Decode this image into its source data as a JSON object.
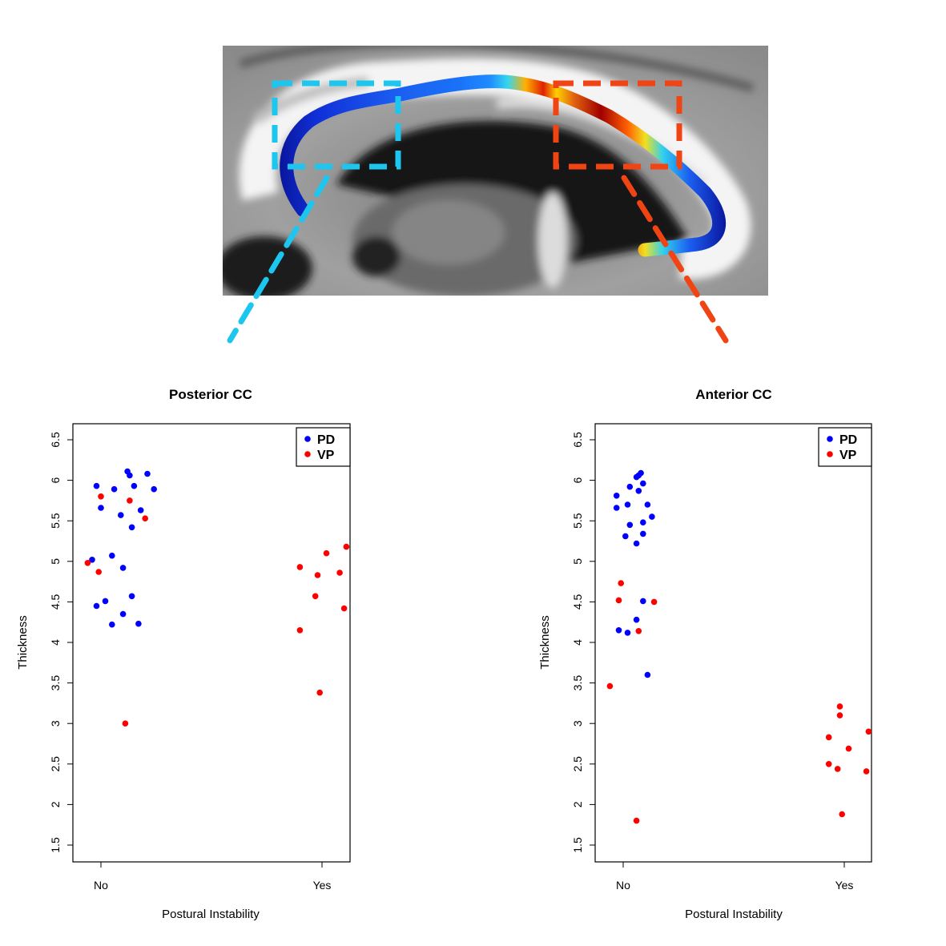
{
  "figure": {
    "colors": {
      "pd": "#0000ff",
      "vp": "#ff0000",
      "posterior_box": "#1cc6ee",
      "anterior_box": "#f04414"
    }
  },
  "chart_data": [
    {
      "type": "scatter",
      "title": "Posterior CC",
      "xlabel": "Postural Instability",
      "ylabel": "Thickness",
      "categories": [
        "No",
        "Yes"
      ],
      "ylim": [
        1.25,
        6.75
      ],
      "yticks": [
        "1.5",
        "2",
        "2.5",
        "3",
        "3.5",
        "4",
        "4.5",
        "5",
        "5.5",
        "6",
        "6.5"
      ],
      "legend": {
        "position": "top-right",
        "entries": [
          "PD",
          "VP"
        ]
      },
      "series": [
        {
          "name": "PD",
          "color": "#0000ff",
          "points": [
            [
              -0.02,
              5.93
            ],
            [
              0.06,
              5.89
            ],
            [
              0.12,
              6.11
            ],
            [
              0.13,
              6.06
            ],
            [
              0.15,
              5.93
            ],
            [
              0.21,
              6.08
            ],
            [
              0.24,
              5.89
            ],
            [
              0.0,
              5.66
            ],
            [
              0.09,
              5.57
            ],
            [
              0.18,
              5.63
            ],
            [
              0.14,
              5.42
            ],
            [
              -0.04,
              5.02
            ],
            [
              0.05,
              5.07
            ],
            [
              0.1,
              4.92
            ],
            [
              -0.02,
              4.45
            ],
            [
              0.02,
              4.51
            ],
            [
              0.14,
              4.57
            ],
            [
              0.05,
              4.22
            ],
            [
              0.1,
              4.35
            ],
            [
              0.17,
              4.23
            ]
          ]
        },
        {
          "name": "VP",
          "color": "#ff0000",
          "points": [
            [
              -0.06,
              4.98
            ],
            [
              -0.01,
              4.87
            ],
            [
              0.0,
              5.8
            ],
            [
              0.13,
              5.75
            ],
            [
              0.2,
              5.53
            ],
            [
              0.11,
              3.0
            ],
            [
              0.9,
              4.93
            ],
            [
              0.98,
              4.83
            ],
            [
              1.02,
              5.1
            ],
            [
              1.08,
              4.86
            ],
            [
              1.11,
              5.18
            ],
            [
              0.97,
              4.57
            ],
            [
              1.1,
              4.42
            ],
            [
              0.9,
              4.15
            ],
            [
              0.99,
              3.38
            ]
          ]
        }
      ]
    },
    {
      "type": "scatter",
      "title": "Anterior CC",
      "xlabel": "Postural Instability",
      "ylabel": "Thickness",
      "categories": [
        "No",
        "Yes"
      ],
      "ylim": [
        1.25,
        6.75
      ],
      "yticks": [
        "1.5",
        "2",
        "2.5",
        "3",
        "3.5",
        "4",
        "4.5",
        "5",
        "5.5",
        "6",
        "6.5"
      ],
      "legend": {
        "position": "top-right",
        "entries": [
          "PD",
          "VP"
        ]
      },
      "series": [
        {
          "name": "PD",
          "color": "#0000ff",
          "points": [
            [
              0.07,
              6.06
            ],
            [
              0.08,
              6.09
            ],
            [
              0.06,
              6.04
            ],
            [
              0.09,
              5.96
            ],
            [
              0.03,
              5.92
            ],
            [
              0.07,
              5.87
            ],
            [
              -0.03,
              5.81
            ],
            [
              -0.03,
              5.66
            ],
            [
              0.02,
              5.7
            ],
            [
              0.11,
              5.7
            ],
            [
              0.13,
              5.55
            ],
            [
              0.09,
              5.48
            ],
            [
              0.03,
              5.45
            ],
            [
              0.09,
              5.34
            ],
            [
              0.01,
              5.31
            ],
            [
              0.06,
              5.22
            ],
            [
              -0.02,
              4.15
            ],
            [
              0.02,
              4.12
            ],
            [
              0.06,
              4.28
            ],
            [
              0.09,
              4.51
            ],
            [
              0.11,
              3.6
            ]
          ]
        },
        {
          "name": "VP",
          "color": "#ff0000",
          "points": [
            [
              -0.06,
              3.46
            ],
            [
              -0.01,
              4.73
            ],
            [
              -0.02,
              4.52
            ],
            [
              0.14,
              4.5
            ],
            [
              0.07,
              4.14
            ],
            [
              0.06,
              1.8
            ],
            [
              0.98,
              3.21
            ],
            [
              0.98,
              3.1
            ],
            [
              0.93,
              2.83
            ],
            [
              1.02,
              2.69
            ],
            [
              1.11,
              2.9
            ],
            [
              0.93,
              2.5
            ],
            [
              0.97,
              2.44
            ],
            [
              1.1,
              2.41
            ],
            [
              0.99,
              1.88
            ]
          ]
        }
      ]
    }
  ]
}
